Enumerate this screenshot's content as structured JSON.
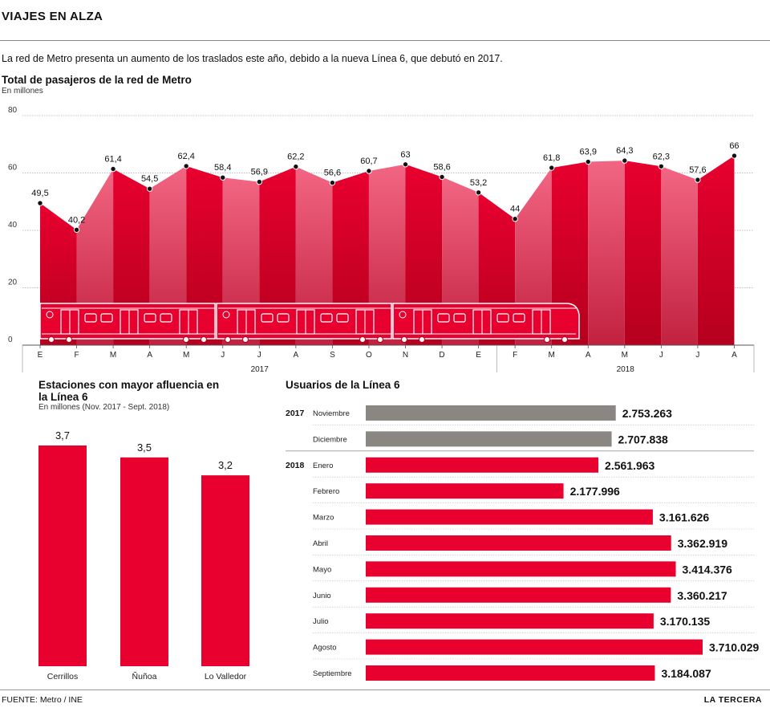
{
  "header": {
    "title": "VIAJES EN ALZA",
    "intro": "La red de Metro presenta un aumento de los traslados este año, debido a la nueva Línea 6, que debutó en 2017."
  },
  "footer": {
    "source": "FUENTE: Metro / INE",
    "brand": "LA TERCERA"
  },
  "colors": {
    "red": "#e8002f",
    "light_red": "#f04a6a",
    "grey": "#8a8782",
    "dark_red": "#b5001e"
  },
  "chart_data": [
    {
      "type": "area",
      "title": "Total de pasajeros de la red de Metro",
      "subtitle": "En millones",
      "categories": [
        "E",
        "F",
        "M",
        "A",
        "M",
        "J",
        "J",
        "A",
        "S",
        "O",
        "N",
        "D",
        "E",
        "F",
        "M",
        "A",
        "M",
        "J",
        "J",
        "A"
      ],
      "values": [
        49.5,
        40.2,
        61.4,
        54.5,
        62.4,
        58.4,
        56.9,
        62.2,
        56.6,
        60.7,
        63,
        58.6,
        53.2,
        44,
        61.8,
        63.9,
        64.3,
        62.3,
        57.6,
        66
      ],
      "value_labels": [
        "49,5",
        "40,2",
        "61,4",
        "54,5",
        "62,4",
        "58,4",
        "56,9",
        "62,2",
        "56,6",
        "60,7",
        "63",
        "58,6",
        "53,2",
        "44",
        "61,8",
        "63,9",
        "64,3",
        "62,3",
        "57,6",
        "66"
      ],
      "ylim": [
        0,
        80
      ],
      "yticks": [
        0,
        20,
        40,
        60,
        80
      ],
      "year_groups": [
        {
          "label": "2017",
          "start": 0,
          "end": 12
        },
        {
          "label": "2018",
          "start": 13,
          "end": 19
        }
      ]
    },
    {
      "type": "bar",
      "title": "Estaciones con mayor afluencia en la Línea 6",
      "subtitle": "En millones (Nov. 2017 - Sept. 2018)",
      "categories": [
        "Cerrillos",
        "Ñuñoa",
        "Lo Valledor"
      ],
      "values": [
        3.7,
        3.5,
        3.2
      ],
      "value_labels": [
        "3,7",
        "3,5",
        "3,2"
      ]
    },
    {
      "type": "bar",
      "orientation": "horizontal",
      "title": "Usuarios de la Línea 6",
      "rows": [
        {
          "year": "2017",
          "month": "Noviembre",
          "value": 2753263,
          "label": "2.753.263",
          "color": "grey"
        },
        {
          "year": "",
          "month": "Diciembre",
          "value": 2707838,
          "label": "2.707.838",
          "color": "grey"
        },
        {
          "year": "2018",
          "month": "Enero",
          "value": 2561963,
          "label": "2.561.963",
          "color": "red"
        },
        {
          "year": "",
          "month": "Febrero",
          "value": 2177996,
          "label": "2.177.996",
          "color": "red"
        },
        {
          "year": "",
          "month": "Marzo",
          "value": 3161626,
          "label": "3.161.626",
          "color": "red"
        },
        {
          "year": "",
          "month": "Abril",
          "value": 3362919,
          "label": "3.362.919",
          "color": "red"
        },
        {
          "year": "",
          "month": "Mayo",
          "value": 3414376,
          "label": "3.414.376",
          "color": "red"
        },
        {
          "year": "",
          "month": "Junio",
          "value": 3360217,
          "label": "3.360.217",
          "color": "red"
        },
        {
          "year": "",
          "month": "Julio",
          "value": 3170135,
          "label": "3.170.135",
          "color": "red"
        },
        {
          "year": "",
          "month": "Agosto",
          "value": 3710029,
          "label": "3.710.029",
          "color": "red"
        },
        {
          "year": "",
          "month": "Septiembre",
          "value": 3184087,
          "label": "3.184.087",
          "color": "red"
        }
      ]
    }
  ]
}
